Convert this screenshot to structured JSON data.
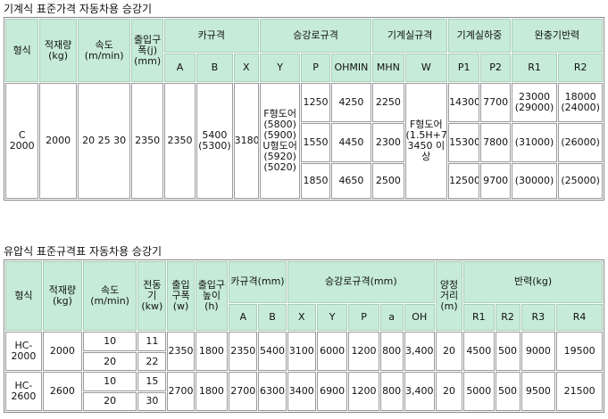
{
  "section1": {
    "title": "기계식 표준가격 자동차용 승강기",
    "headers": {
      "type": "형식",
      "capacity": "적재량(kg)",
      "speed": "속도(m/min)",
      "door": "출입구폭(j)(mm)",
      "car": "카규격",
      "hoistway": "승강로규격",
      "machine_room": "기계실규격",
      "machine_load": "기계실하중",
      "buffer": "완충기반력",
      "sub": [
        "A",
        "B",
        "X",
        "Y",
        "P",
        "OHMIN",
        "MHN",
        "W",
        "P1",
        "P2",
        "R1",
        "R2"
      ]
    },
    "row": {
      "type": "C 2000",
      "capacity": "2000",
      "speed": "20 25 30",
      "door": "2350",
      "A": "2350",
      "B": "5400 (5300)",
      "X": "3180",
      "Y": "F형도어 (5800) (5900) U형도어 (5920) (5020)",
      "W": "F형도어 (1.5H+750) 3450 이상",
      "sub_rows": [
        {
          "P": "1250",
          "OHMIN": "4250",
          "MHN": "2250",
          "P1": "14300",
          "P2": "7700",
          "R1": "23000 (29000)",
          "R2": "18000 (24000)"
        },
        {
          "P": "1550",
          "OHMIN": "4450",
          "MHN": "2300",
          "P1": "15300",
          "P2": "7800",
          "R1": "(31000)",
          "R2": "(26000)"
        },
        {
          "P": "1850",
          "OHMIN": "4650",
          "MHN": "2500",
          "P1": "12500",
          "P2": "9700",
          "R1": "(30000)",
          "R2": "(25000)"
        }
      ]
    }
  },
  "section2": {
    "title": "유압식 표준규격표 자동차용 승강기",
    "headers": {
      "type": "형식",
      "capacity": "적재량(kg)",
      "speed": "속도(m/min)",
      "motor": "전동기(kw)",
      "door_w": "출입구폭(w)",
      "door_h": "출입구높이(h)",
      "car": "카규격(mm)",
      "hoistway": "승강로규격(mm)",
      "travel": "양정거리(m)",
      "reaction": "반력(kg)",
      "sub": [
        "A",
        "B",
        "X",
        "Y",
        "P",
        "a",
        "OH",
        "R1",
        "R2",
        "R3",
        "R4"
      ]
    },
    "rows": [
      {
        "type": "HC-2000",
        "capacity": "2000",
        "speeds": [
          "10",
          "20"
        ],
        "motors": [
          "11",
          "22"
        ],
        "door_w": "2350",
        "door_h": "1800",
        "A": "2350",
        "B": "5400",
        "X": "3100",
        "Y": "6000",
        "P": "1200",
        "a": "800",
        "OH": "3,400",
        "travel": "20",
        "R1": "4500",
        "R2": "500",
        "R3": "9000",
        "R4": "19500"
      },
      {
        "type": "HC-2600",
        "capacity": "2600",
        "speeds": [
          "10",
          "20"
        ],
        "motors": [
          "15",
          "30"
        ],
        "door_w": "2700",
        "door_h": "1800",
        "A": "2700",
        "B": "6300",
        "X": "3400",
        "Y": "6900",
        "P": "1200",
        "a": "800",
        "OH": "3,400",
        "travel": "20",
        "R1": "5000",
        "R2": "500",
        "R3": "9500",
        "R4": "21500"
      }
    ]
  }
}
